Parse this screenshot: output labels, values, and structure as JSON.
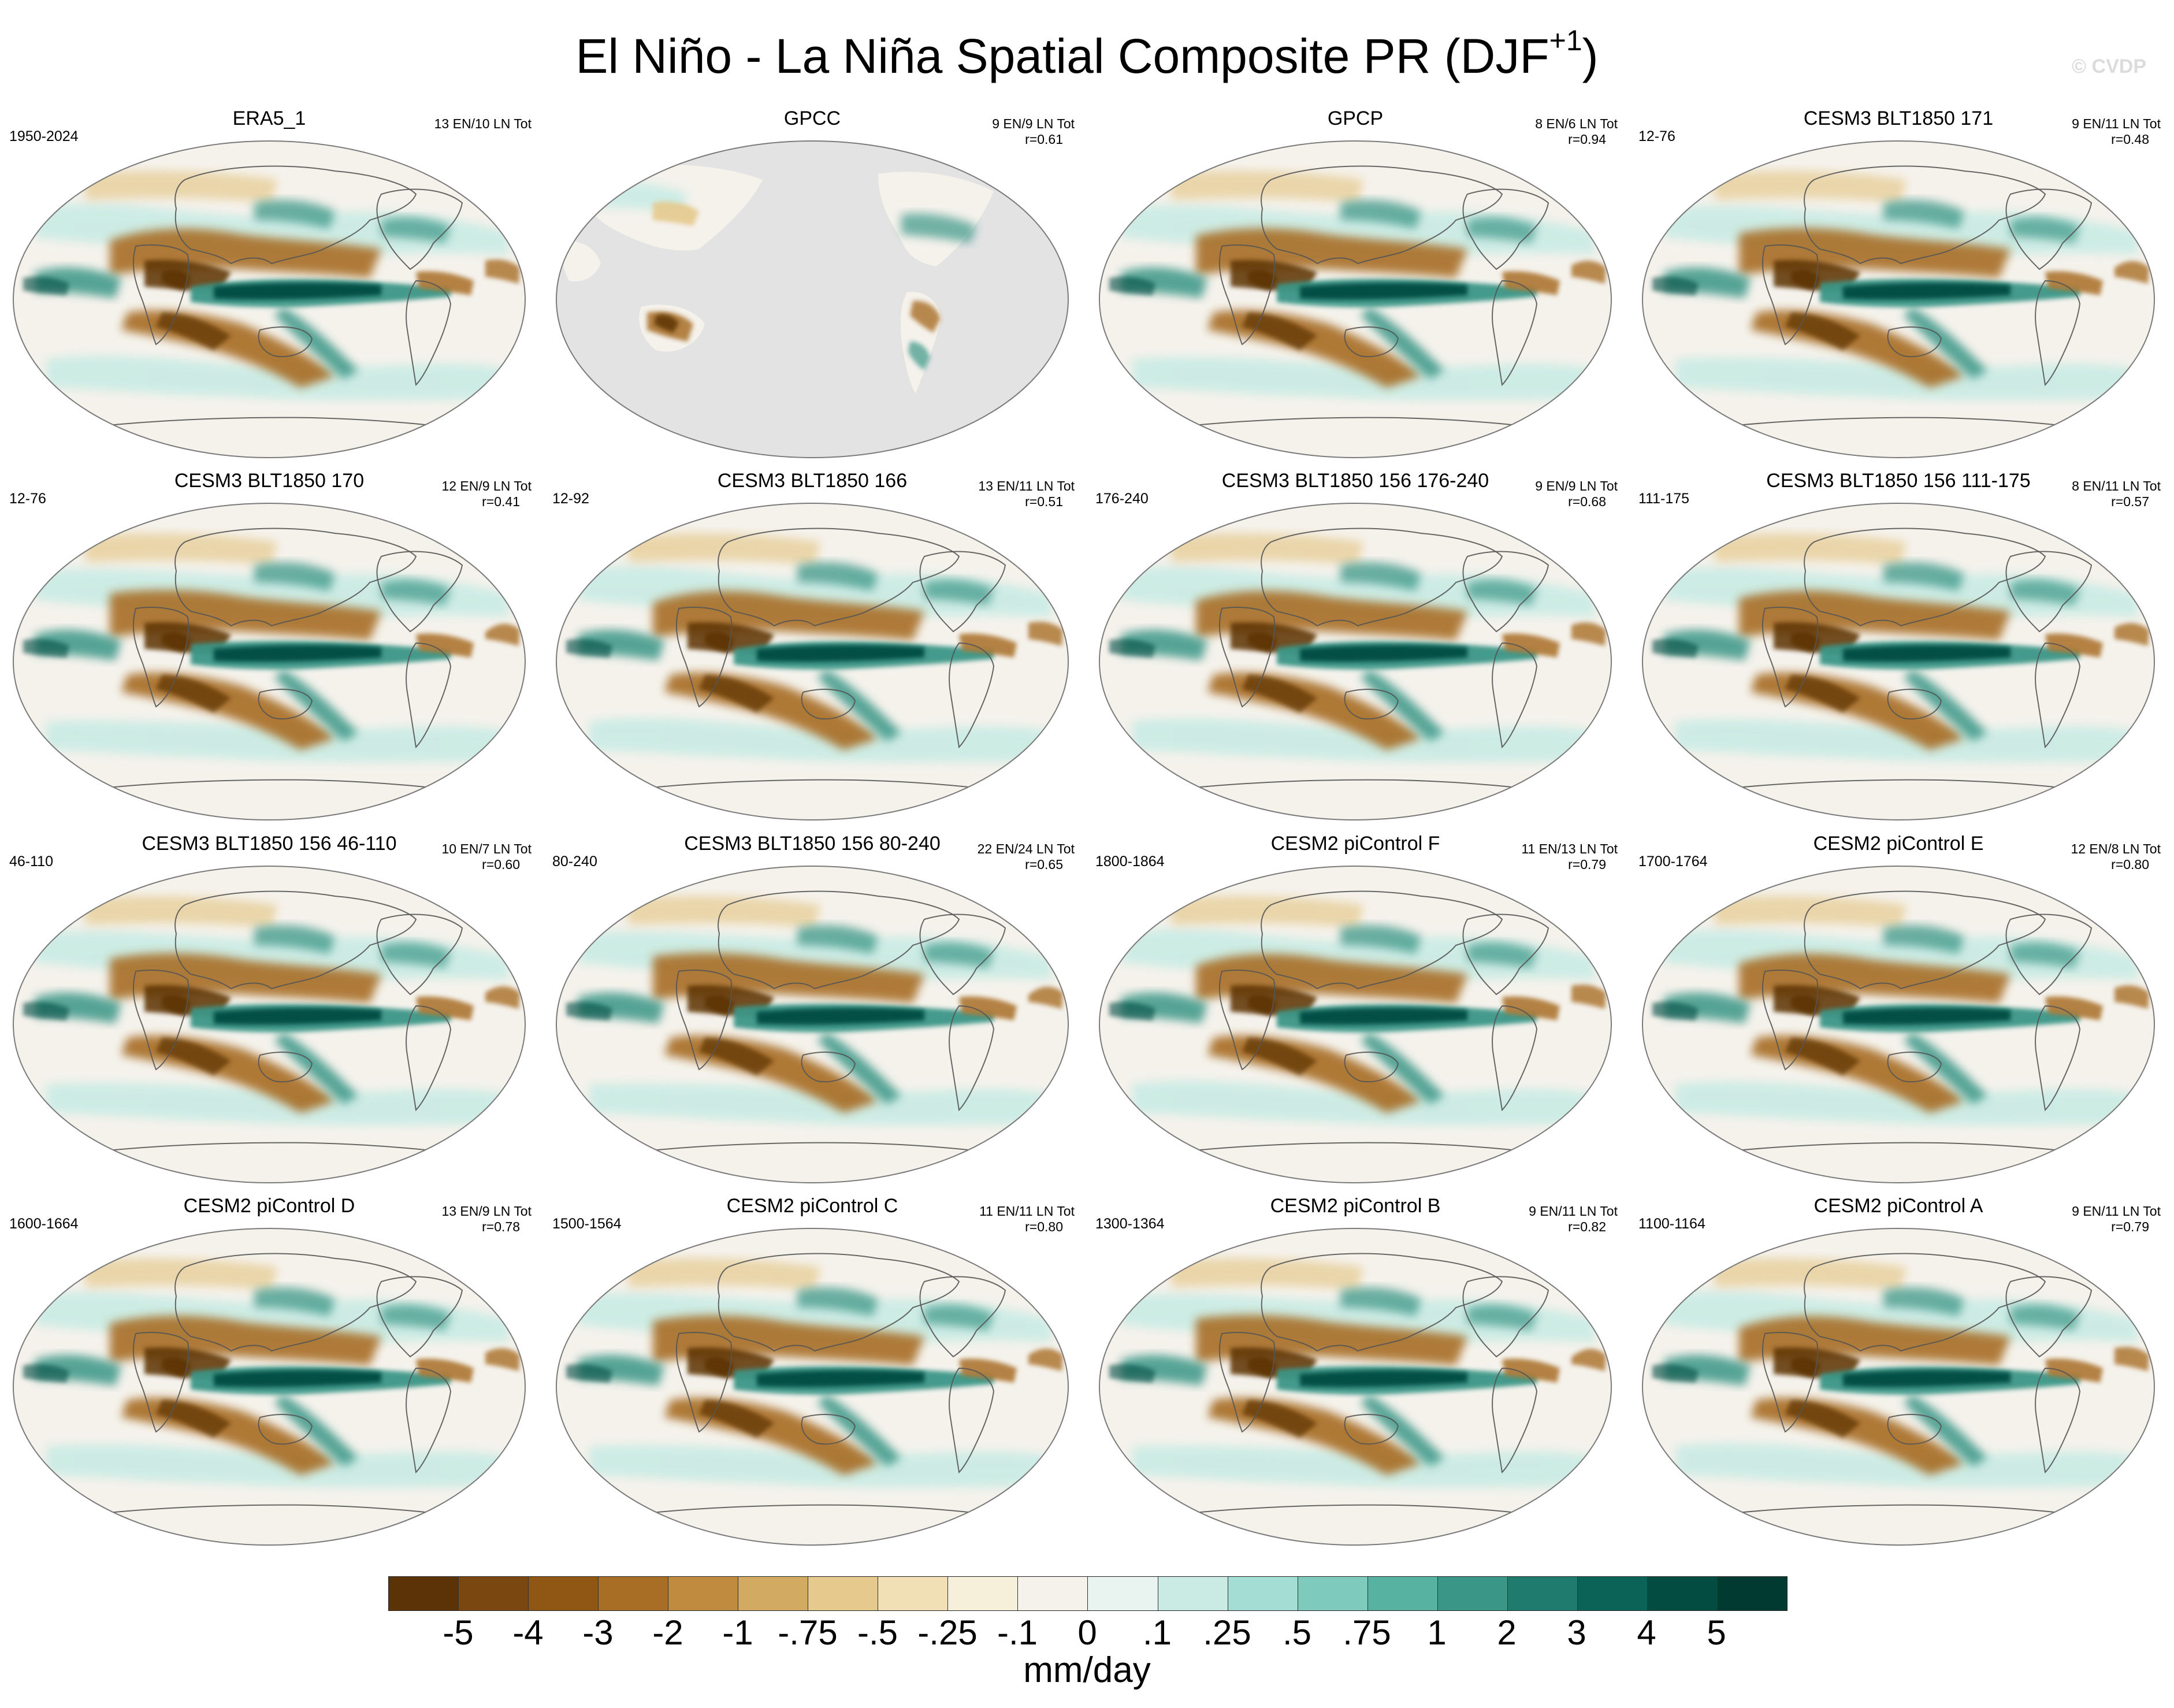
{
  "figure": {
    "title_main": "El Niño - La Niña Spatial Composite PR (DJF",
    "title_sup": "+1",
    "title_close": ")",
    "watermark": "© CVDP",
    "units": "mm/day"
  },
  "panels": [
    {
      "title": "ERA5_1",
      "period": "1950-2024",
      "stats": "13 EN/10 LN Tot",
      "r": "",
      "variant": "full"
    },
    {
      "title": "GPCC",
      "period": "",
      "stats": "9 EN/9 LN Tot",
      "r": "r=0.61",
      "variant": "land"
    },
    {
      "title": "GPCP",
      "period": "",
      "stats": "8 EN/6 LN Tot",
      "r": "r=0.94",
      "variant": "full"
    },
    {
      "title": "CESM3 BLT1850 171",
      "period": "12-76",
      "stats": "9 EN/11 LN Tot",
      "r": "r=0.48",
      "variant": "full"
    },
    {
      "title": "CESM3 BLT1850 170",
      "period": "12-76",
      "stats": "12 EN/9 LN Tot",
      "r": "r=0.41",
      "variant": "full"
    },
    {
      "title": "CESM3 BLT1850 166",
      "period": "12-92",
      "stats": "13 EN/11 LN Tot",
      "r": "r=0.51",
      "variant": "full"
    },
    {
      "title": "CESM3 BLT1850 156 176-240",
      "period": "176-240",
      "stats": "9 EN/9 LN Tot",
      "r": "r=0.68",
      "variant": "full"
    },
    {
      "title": "CESM3 BLT1850 156 111-175",
      "period": "111-175",
      "stats": "8 EN/11 LN Tot",
      "r": "r=0.57",
      "variant": "full"
    },
    {
      "title": "CESM3 BLT1850 156 46-110",
      "period": "46-110",
      "stats": "10 EN/7 LN Tot",
      "r": "r=0.60",
      "variant": "full"
    },
    {
      "title": "CESM3 BLT1850 156 80-240",
      "period": "80-240",
      "stats": "22 EN/24 LN Tot",
      "r": "r=0.65",
      "variant": "full"
    },
    {
      "title": "CESM2 piControl F",
      "period": "1800-1864",
      "stats": "11 EN/13 LN Tot",
      "r": "r=0.79",
      "variant": "full"
    },
    {
      "title": "CESM2 piControl E",
      "period": "1700-1764",
      "stats": "12 EN/8 LN Tot",
      "r": "r=0.80",
      "variant": "full"
    },
    {
      "title": "CESM2 piControl D",
      "period": "1600-1664",
      "stats": "13 EN/9 LN Tot",
      "r": "r=0.78",
      "variant": "full"
    },
    {
      "title": "CESM2 piControl C",
      "period": "1500-1564",
      "stats": "11 EN/11 LN Tot",
      "r": "r=0.80",
      "variant": "full"
    },
    {
      "title": "CESM2 piControl B",
      "period": "1300-1364",
      "stats": "9 EN/11 LN Tot",
      "r": "r=0.82",
      "variant": "full"
    },
    {
      "title": "CESM2 piControl A",
      "period": "1100-1164",
      "stats": "9 EN/11 LN Tot",
      "r": "r=0.79",
      "variant": "full"
    }
  ],
  "colorbar": {
    "colors": [
      "#5b3306",
      "#7a4710",
      "#8f5614",
      "#a86e26",
      "#c08a3f",
      "#d3aa62",
      "#e5c98d",
      "#f1e0b6",
      "#f6efd9",
      "#f5f2ec",
      "#e9f4f1",
      "#c9ebe4",
      "#a4ddd4",
      "#7ecbbd",
      "#57b2a1",
      "#3a9687",
      "#1e7b6e",
      "#0b6358",
      "#034c42",
      "#013a30"
    ],
    "ticks": [
      "-5",
      "-4",
      "-3",
      "-2",
      "-1",
      "-.75",
      "-.5",
      "-.25",
      "-.1",
      "0",
      ".1",
      ".25",
      ".5",
      ".75",
      "1",
      "2",
      "3",
      "4",
      "5"
    ]
  },
  "palette": {
    "dry_deep": "#5b3306",
    "dry_mid": "#a86e26",
    "dry_light": "#e5c98d",
    "neutral": "#f5f2ec",
    "wet_light": "#c9ebe4",
    "wet_mid": "#3a9687",
    "wet_deep": "#034c42",
    "no_data": "#e3e3e3",
    "coast": "#555555"
  }
}
